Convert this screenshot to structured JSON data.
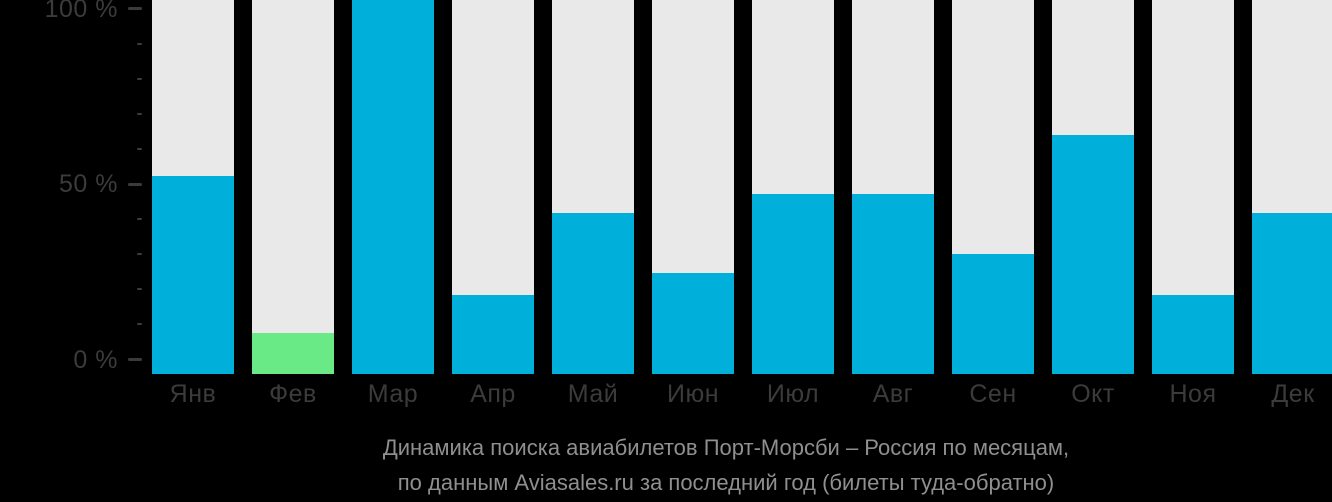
{
  "chart_data": {
    "type": "bar",
    "title": "Динамика поиска авиабилетов Порт-Морсби – Россия по месяцам,",
    "subtitle": "по данным Aviasales.ru за последний год (билеты туда-обратно)",
    "categories": [
      "Янв",
      "Фев",
      "Мар",
      "Апр",
      "Май",
      "Июн",
      "Июл",
      "Авг",
      "Сен",
      "Окт",
      "Ноя",
      "Дек"
    ],
    "values": [
      53,
      11,
      100,
      21,
      43,
      27,
      48,
      48,
      32,
      64,
      21,
      43
    ],
    "unit": "%",
    "ylim": [
      0,
      100
    ],
    "yticks_major": [
      0,
      50,
      100
    ],
    "ytick_labels": [
      "0 %",
      "50 %",
      "100 %"
    ],
    "yticks_minor": [
      10,
      20,
      30,
      40,
      60,
      70,
      80,
      90
    ],
    "highlight_index": 1,
    "legend": "none",
    "grid": "off",
    "colors": {
      "bar": "#00b0db",
      "highlight_bar": "#69ea87",
      "column_bg": "#e9e9e9",
      "background": "#000000",
      "axis_text": "#3b3b3b",
      "caption_text": "#8f8f8f"
    }
  }
}
